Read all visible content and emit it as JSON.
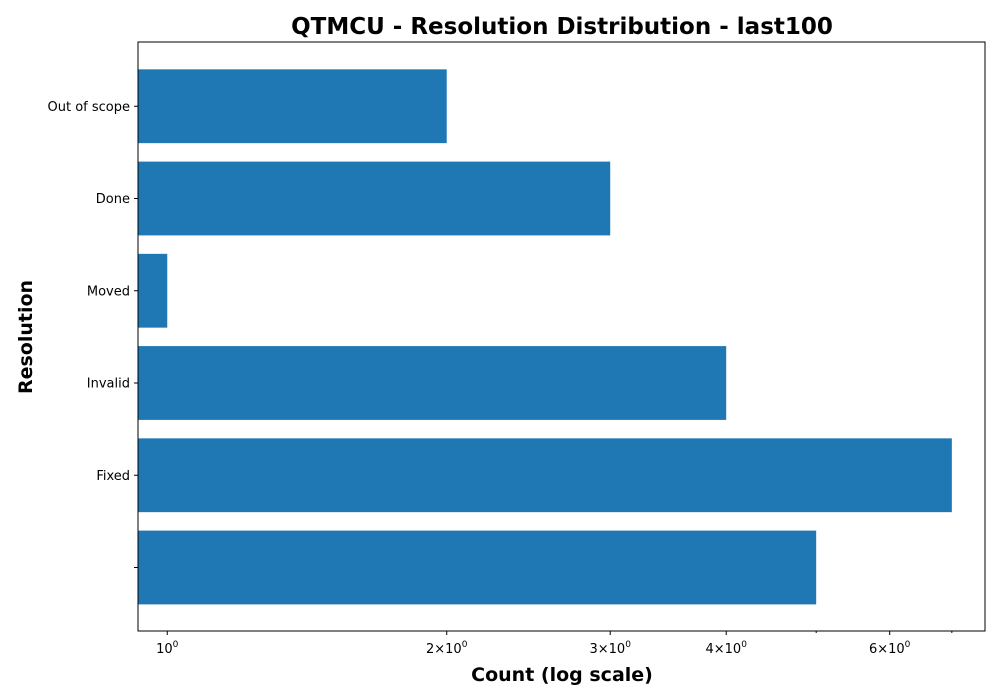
{
  "chart_data": {
    "type": "bar",
    "orientation": "horizontal",
    "title": "QTMCU - Resolution Distribution - last100",
    "xlabel": "Count (log scale)",
    "ylabel": "Resolution",
    "x_scale": "log",
    "xlim": [
      0.93,
      7.6
    ],
    "x_ticks": [
      {
        "value": 1,
        "mantissa": "",
        "exponent": "0"
      },
      {
        "value": 2,
        "mantissa": "2",
        "exponent": "0"
      },
      {
        "value": 3,
        "mantissa": "3",
        "exponent": "0"
      },
      {
        "value": 4,
        "mantissa": "4",
        "exponent": "0"
      },
      {
        "value": 6,
        "mantissa": "6",
        "exponent": "0"
      }
    ],
    "x_minor_ticks": [
      5,
      7
    ],
    "categories": [
      "",
      "Fixed",
      "Invalid",
      "Moved",
      "Done",
      "Out of scope"
    ],
    "values": [
      5,
      7,
      4,
      1,
      3,
      2
    ],
    "bar_color": "#1f77b4",
    "grid": false
  }
}
